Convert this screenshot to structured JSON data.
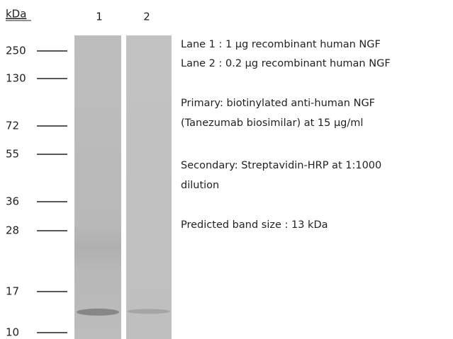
{
  "axis_label": "kDa",
  "lanes": [
    "1",
    "2"
  ],
  "markers": [
    "250",
    "130",
    "72",
    "55",
    "36",
    "28",
    "17",
    "10"
  ],
  "legend": [
    "Lane 1 : 1 µg recombinant human NGF",
    "Lane 2 : 0.2 µg recombinant human NGF",
    "Primary: biotinylated anti-human NGF",
    "(Tanezumab biosimilar) at 15 µg/ml",
    "Secondary: Streptavidin-HRP  at 1:1000",
    "dilution",
    "Predicted band size : 13 kDa"
  ]
}
